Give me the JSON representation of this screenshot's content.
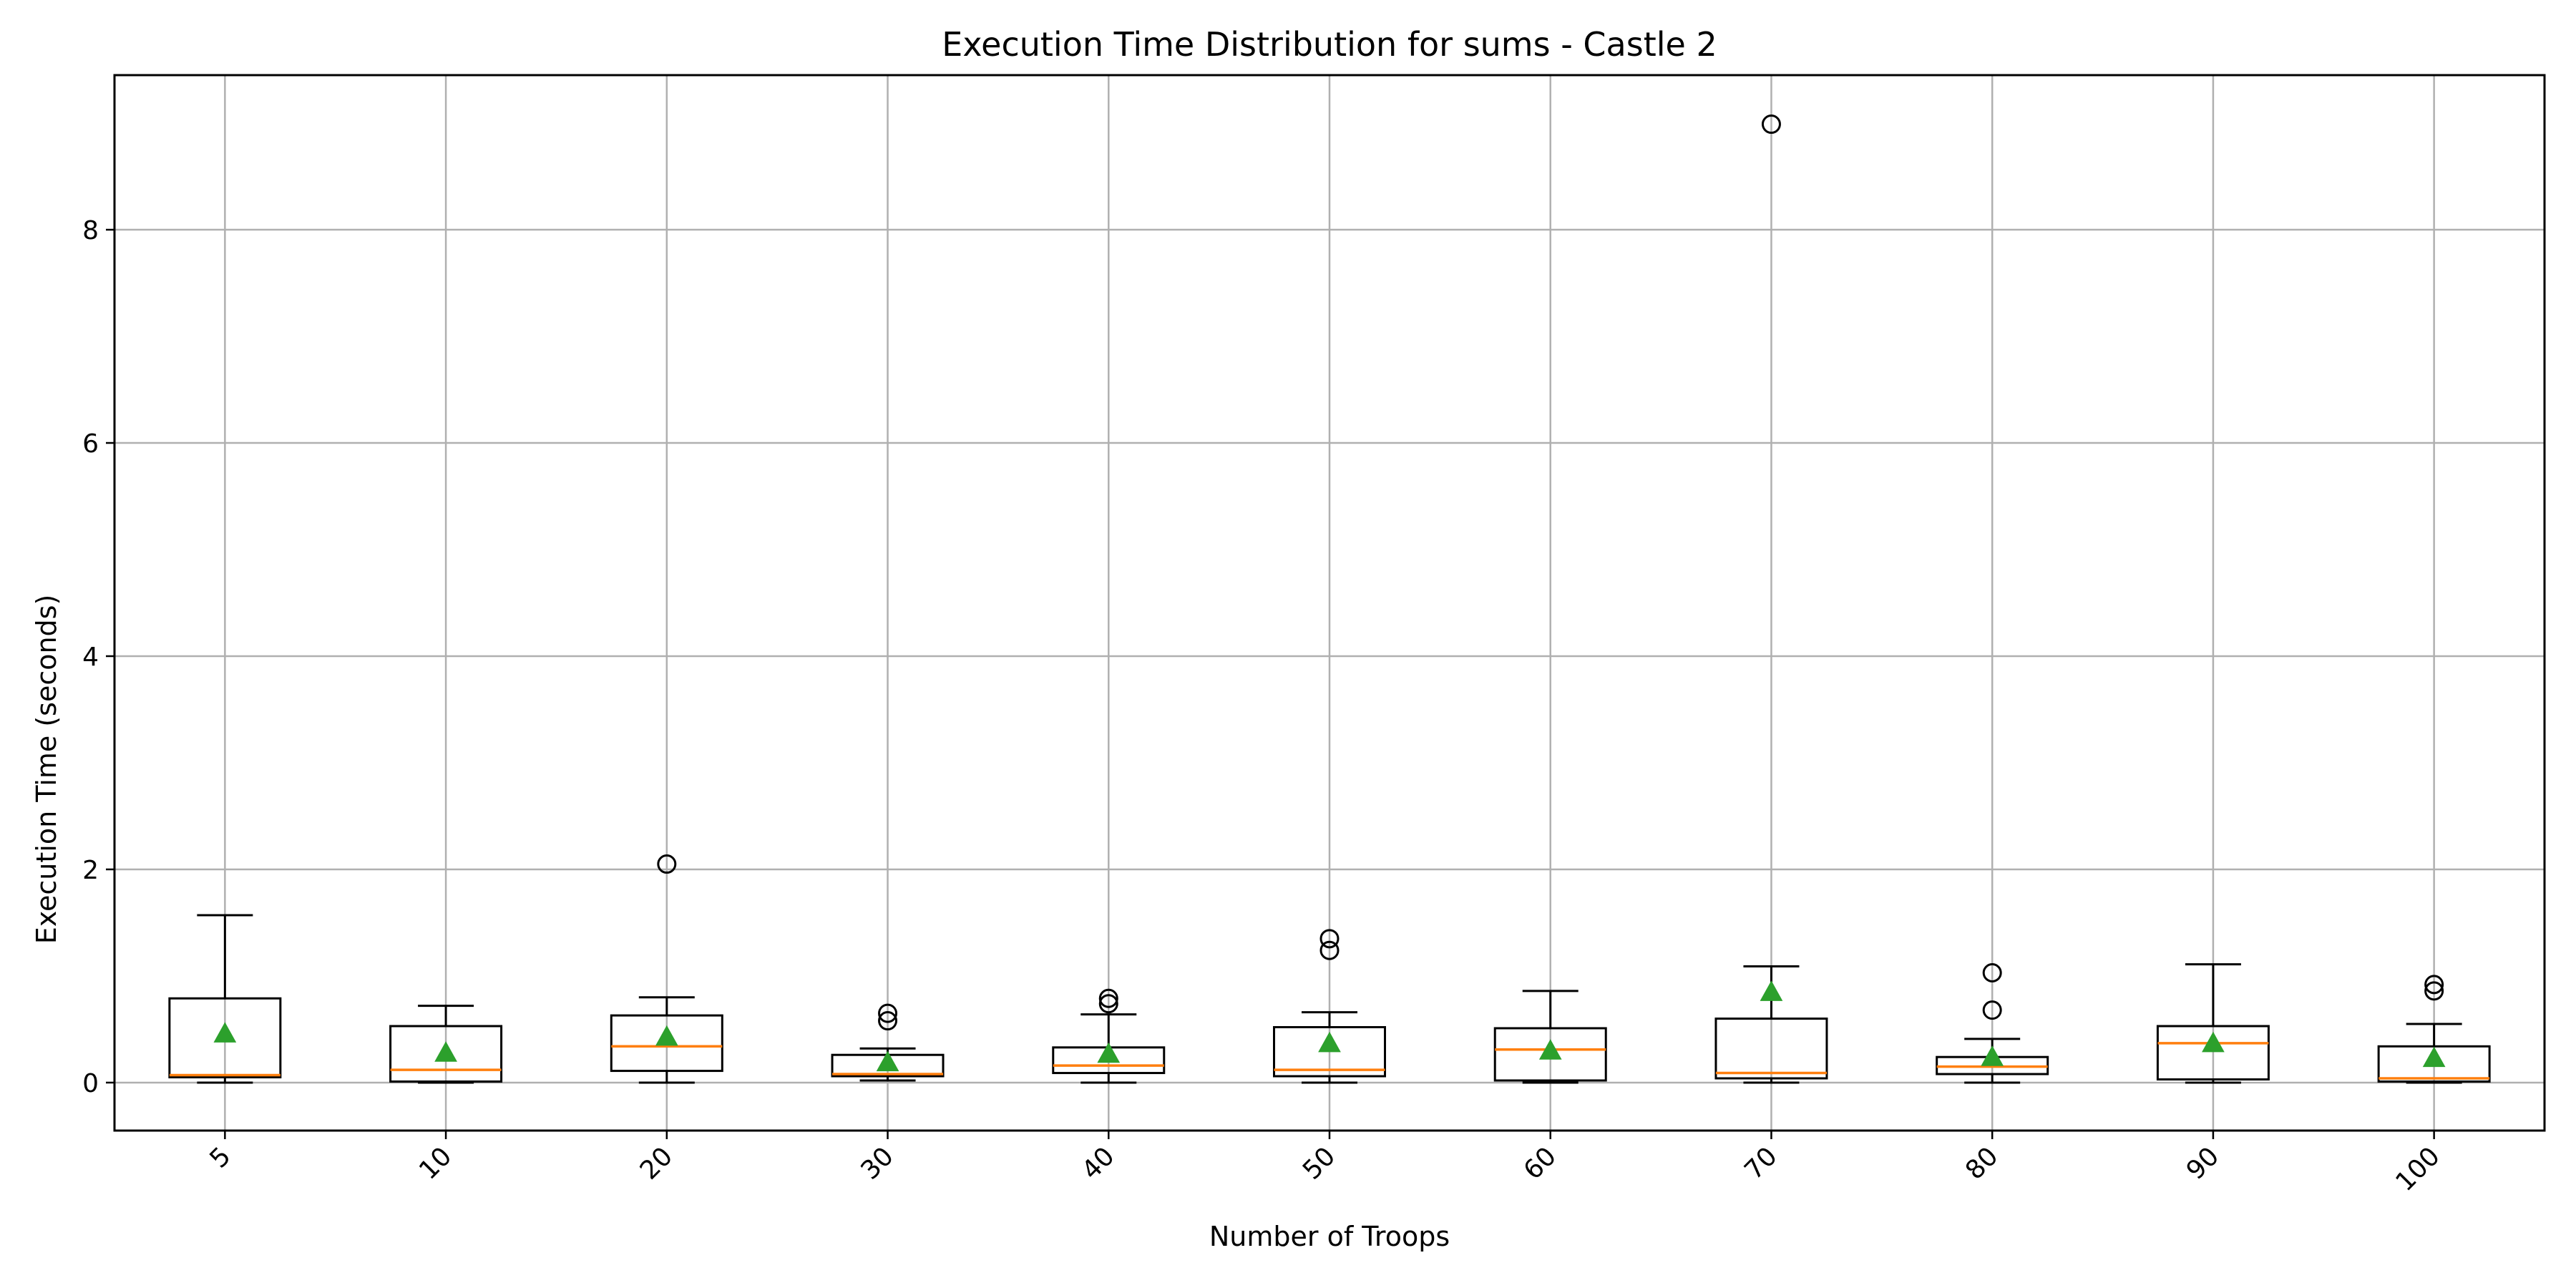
{
  "chart_data": {
    "type": "boxplot",
    "title": "Execution Time Distribution for sums - Castle 2",
    "xlabel": "Number of Troops",
    "ylabel": "Execution Time (seconds)",
    "ylim": [
      -0.45,
      9.45
    ],
    "yticks": [
      0,
      2,
      4,
      6,
      8
    ],
    "grid": true,
    "colors": {
      "box": "#000000",
      "median": "#ff7f0e",
      "mean": "#2ca02c",
      "grid": "#b0b0b0"
    },
    "categories": [
      "5",
      "10",
      "20",
      "30",
      "40",
      "50",
      "60",
      "70",
      "80",
      "90",
      "100"
    ],
    "boxes": [
      {
        "label": "5",
        "whislo": 0.0,
        "q1": 0.05,
        "median": 0.07,
        "q3": 0.79,
        "whishi": 1.57,
        "mean": 0.46,
        "fliers": []
      },
      {
        "label": "10",
        "whislo": 0.0,
        "q1": 0.01,
        "median": 0.12,
        "q3": 0.53,
        "whishi": 0.72,
        "mean": 0.28,
        "fliers": []
      },
      {
        "label": "20",
        "whislo": 0.0,
        "q1": 0.11,
        "median": 0.34,
        "q3": 0.63,
        "whishi": 0.8,
        "mean": 0.43,
        "fliers": [
          2.05
        ]
      },
      {
        "label": "30",
        "whislo": 0.02,
        "q1": 0.06,
        "median": 0.08,
        "q3": 0.26,
        "whishi": 0.32,
        "mean": 0.19,
        "fliers": [
          0.58,
          0.65
        ]
      },
      {
        "label": "40",
        "whislo": 0.0,
        "q1": 0.09,
        "median": 0.16,
        "q3": 0.33,
        "whishi": 0.64,
        "mean": 0.27,
        "fliers": [
          0.74,
          0.79
        ]
      },
      {
        "label": "50",
        "whislo": 0.0,
        "q1": 0.06,
        "median": 0.12,
        "q3": 0.52,
        "whishi": 0.66,
        "mean": 0.37,
        "fliers": [
          1.24,
          1.35
        ]
      },
      {
        "label": "60",
        "whislo": 0.0,
        "q1": 0.02,
        "median": 0.31,
        "q3": 0.51,
        "whishi": 0.86,
        "mean": 0.3,
        "fliers": []
      },
      {
        "label": "70",
        "whislo": 0.0,
        "q1": 0.04,
        "median": 0.09,
        "q3": 0.6,
        "whishi": 1.09,
        "mean": 0.85,
        "fliers": [
          8.99
        ]
      },
      {
        "label": "80",
        "whislo": 0.0,
        "q1": 0.08,
        "median": 0.15,
        "q3": 0.24,
        "whishi": 0.41,
        "mean": 0.24,
        "fliers": [
          0.68,
          1.03
        ]
      },
      {
        "label": "90",
        "whislo": 0.0,
        "q1": 0.03,
        "median": 0.37,
        "q3": 0.53,
        "whishi": 1.11,
        "mean": 0.37,
        "fliers": []
      },
      {
        "label": "100",
        "whislo": 0.0,
        "q1": 0.01,
        "median": 0.04,
        "q3": 0.34,
        "whishi": 0.55,
        "mean": 0.23,
        "fliers": [
          0.86,
          0.92
        ]
      }
    ]
  }
}
